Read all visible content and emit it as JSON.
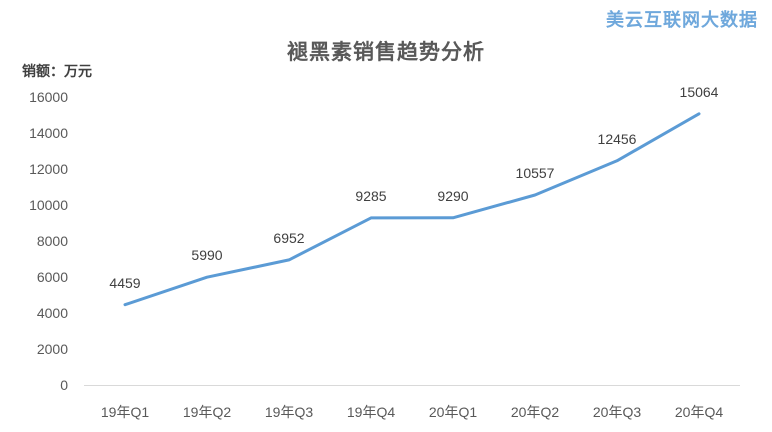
{
  "header": {
    "brand": "美云互联网大数据",
    "brand_color": "#6FA8DC"
  },
  "chart_data": {
    "type": "line",
    "title": "褪黑素销售趋势分析",
    "ylabel": "销额：万元",
    "xlabel": "",
    "categories": [
      "19年Q1",
      "19年Q2",
      "19年Q3",
      "19年Q4",
      "20年Q1",
      "20年Q2",
      "20年Q3",
      "20年Q4"
    ],
    "values": [
      4459,
      5990,
      6952,
      9285,
      9290,
      10557,
      12456,
      15064
    ],
    "yticks": [
      0,
      2000,
      4000,
      6000,
      8000,
      10000,
      12000,
      14000,
      16000
    ],
    "ylim": [
      0,
      16000
    ],
    "grid": false,
    "legend_position": "none",
    "colors": {
      "line": "#5B9BD5",
      "axis_line": "#D9D9D9",
      "tick_label": "#595959",
      "data_label": "#404040",
      "title": "#595959"
    }
  }
}
